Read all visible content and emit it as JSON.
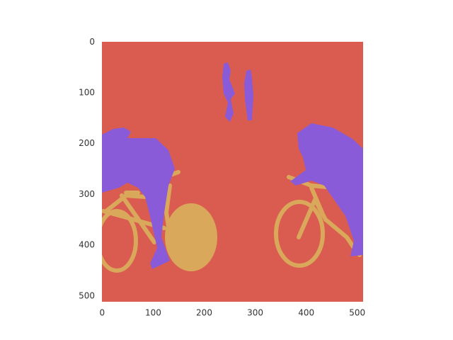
{
  "chart_data": {
    "type": "image",
    "xlim": [
      -0.5,
      511.5
    ],
    "ylim": [
      511.5,
      -0.5
    ],
    "xticks": [
      0,
      100,
      200,
      300,
      400,
      500
    ],
    "yticks": [
      0,
      100,
      200,
      300,
      400,
      500
    ]
  }
}
